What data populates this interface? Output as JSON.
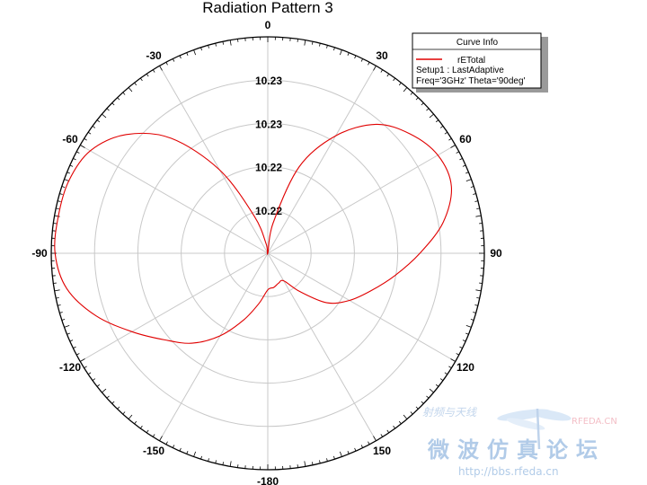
{
  "chart_data": {
    "type": "polar-line",
    "title": "Radiation Pattern 3",
    "angle_ticks": [
      "0",
      "30",
      "60",
      "90",
      "120",
      "150",
      "-180",
      "-150",
      "-120",
      "-90",
      "-60",
      "-30"
    ],
    "angle_tick_values": [
      0,
      30,
      60,
      90,
      120,
      150,
      180,
      -150,
      -120,
      -90,
      -60,
      -30
    ],
    "radial_tick_labels": [
      "10.22",
      "10.22",
      "10.23",
      "10.23"
    ],
    "radial_range": [
      10.215,
      10.2375
    ],
    "grid": true,
    "legend_position": "top-right",
    "series": [
      {
        "name": "rETotal",
        "color": "#e00000",
        "theta": [
          0,
          10,
          20,
          30,
          40,
          50,
          60,
          70,
          80,
          90,
          100,
          110,
          120,
          130,
          140,
          150,
          160,
          170,
          180,
          -170,
          -160,
          -150,
          -140,
          -130,
          -120,
          -110,
          -100,
          -90,
          -80,
          -70,
          -60,
          -50,
          -40,
          -30,
          -20,
          -10
        ],
        "r": [
          10.215,
          10.2182,
          10.2246,
          10.2291,
          10.2325,
          10.2343,
          10.2354,
          10.2353,
          10.2335,
          10.2308,
          10.2284,
          10.2264,
          10.2248,
          10.223,
          10.2202,
          10.2183,
          10.2183,
          10.2186,
          10.2188,
          10.2203,
          10.2224,
          10.2249,
          10.2272,
          10.229,
          10.2313,
          10.234,
          10.2362,
          10.2371,
          10.2371,
          10.237,
          10.2363,
          10.2342,
          10.2306,
          10.225,
          10.2191,
          10.216
        ]
      }
    ]
  },
  "legend": {
    "title": "Curve Info",
    "entry": "rETotal",
    "setup": "Setup1 : LastAdaptive",
    "freq": "Freq='3GHz' Theta='90deg'"
  },
  "watermark": {
    "logo": "RFEDA.CN",
    "cn_small": "射频与天线",
    "cn_large": "微波仿真论坛",
    "url": "http://bbs.rfeda.cn"
  },
  "colors": {
    "curve": "#e00000",
    "grid": "#c8c8c8",
    "outer_ring": "#000000",
    "watermark": "#a9c6e6"
  }
}
